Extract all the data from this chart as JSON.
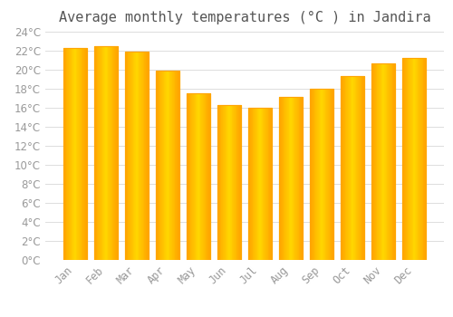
{
  "title": "Average monthly temperatures (°C ) in Jandira",
  "months": [
    "Jan",
    "Feb",
    "Mar",
    "Apr",
    "May",
    "Jun",
    "Jul",
    "Aug",
    "Sep",
    "Oct",
    "Nov",
    "Dec"
  ],
  "values": [
    22.3,
    22.5,
    21.9,
    19.9,
    17.5,
    16.3,
    16.0,
    17.1,
    18.0,
    19.3,
    20.7,
    21.2
  ],
  "bar_color_center": "#FFD700",
  "bar_color_edge": "#FFA500",
  "ylim": [
    0,
    24
  ],
  "yticks": [
    0,
    2,
    4,
    6,
    8,
    10,
    12,
    14,
    16,
    18,
    20,
    22,
    24
  ],
  "background_color": "#FFFFFF",
  "grid_color": "#DDDDDD",
  "title_fontsize": 11,
  "tick_fontsize": 8.5,
  "title_color": "#555555",
  "tick_color": "#999999"
}
